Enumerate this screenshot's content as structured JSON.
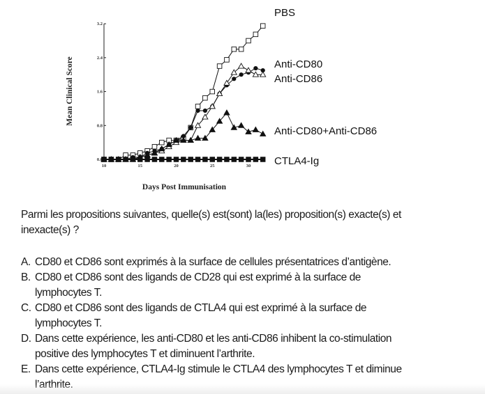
{
  "chart_data": {
    "type": "line",
    "title": "",
    "xlabel": "Days Post Immunisation",
    "ylabel": "Mean Clinical Score",
    "xlim": [
      10,
      32
    ],
    "ylim": [
      0,
      3.2
    ],
    "xticks": [
      "10",
      "15",
      "20",
      "25",
      "30"
    ],
    "yticks": [
      "0.0",
      "0.8",
      "1.6",
      "2.4",
      "3.2"
    ],
    "x": [
      10,
      11,
      12,
      13,
      14,
      15,
      16,
      17,
      18,
      19,
      20,
      21,
      22,
      23,
      24,
      25,
      26,
      27,
      28,
      29,
      30,
      31,
      32
    ],
    "series": [
      {
        "name": "PBS",
        "marker": "open-square",
        "values": [
          0,
          0,
          0,
          0.1,
          0.1,
          0.15,
          0.2,
          0.3,
          0.4,
          0.45,
          0.45,
          0.5,
          0.75,
          1.25,
          1.45,
          1.6,
          2.2,
          2.35,
          2.6,
          2.6,
          2.8,
          2.95,
          3.15
        ]
      },
      {
        "name": "Anti-CD80",
        "marker": "filled-circle",
        "values": [
          0,
          0,
          0,
          0,
          0.05,
          0.05,
          0.15,
          0.2,
          0.25,
          0.35,
          0.45,
          0.55,
          0.75,
          1.15,
          1.15,
          1.25,
          1.55,
          1.75,
          1.9,
          2.0,
          2.05,
          2.15,
          2.1
        ]
      },
      {
        "name": "Anti-CD86",
        "marker": "open-triangle",
        "values": [
          0,
          0,
          0,
          0,
          0,
          0.05,
          0.1,
          0.15,
          0.2,
          0.3,
          0.4,
          0.45,
          0.45,
          0.8,
          1.0,
          1.25,
          1.55,
          1.8,
          2.05,
          2.2,
          2.1,
          2.0,
          2.0
        ]
      },
      {
        "name": "Anti-CD80+Anti-CD86",
        "marker": "filled-triangle",
        "values": [
          0,
          0,
          0,
          0,
          0,
          0.05,
          0.1,
          0.15,
          0.25,
          0.35,
          0.45,
          0.45,
          0.45,
          0.5,
          0.5,
          0.7,
          0.9,
          1.1,
          0.75,
          0.8,
          0.65,
          0.7,
          0.6
        ]
      },
      {
        "name": "CTLA4-Ig",
        "marker": "filled-square",
        "values": [
          0,
          0,
          0,
          0,
          0,
          0,
          0,
          0,
          0,
          0,
          0,
          0,
          0,
          0,
          0,
          0,
          0,
          0,
          0,
          0,
          0,
          0,
          0
        ]
      }
    ],
    "grid": false,
    "legend": "right, labels next to line ends"
  },
  "question": {
    "line1": "Parmi les propositions suivantes, quelle(s) est(sont) la(les) proposition(s) exacte(s) et",
    "line2": "inexacte(s) ?"
  },
  "options": [
    {
      "letter": "A.",
      "line1": "CD80 et CD86 sont exprimés à la surface de cellules présentatrices d’antigène.",
      "line2": ""
    },
    {
      "letter": "B.",
      "line1": "CD80 et CD86 sont des ligands de CD28 qui est exprimé à la surface de",
      "line2": "lymphocytes T."
    },
    {
      "letter": "C.",
      "line1": "CD80 et CD86 sont des ligands de CTLA4 qui est exprimé à la surface de",
      "line2": "lymphocytes T."
    },
    {
      "letter": "D.",
      "line1": "Dans cette expérience, les anti-CD80 et les anti-CD86 inhibent la co-stimulation",
      "line2": "positive des lymphocytes T et diminuent l’arthrite."
    },
    {
      "letter": "E.",
      "line1": "Dans cette expérience, CTLA4-Ig stimule le CTLA4 des lymphocytes T et diminue",
      "line2": "l’arthrite."
    }
  ]
}
